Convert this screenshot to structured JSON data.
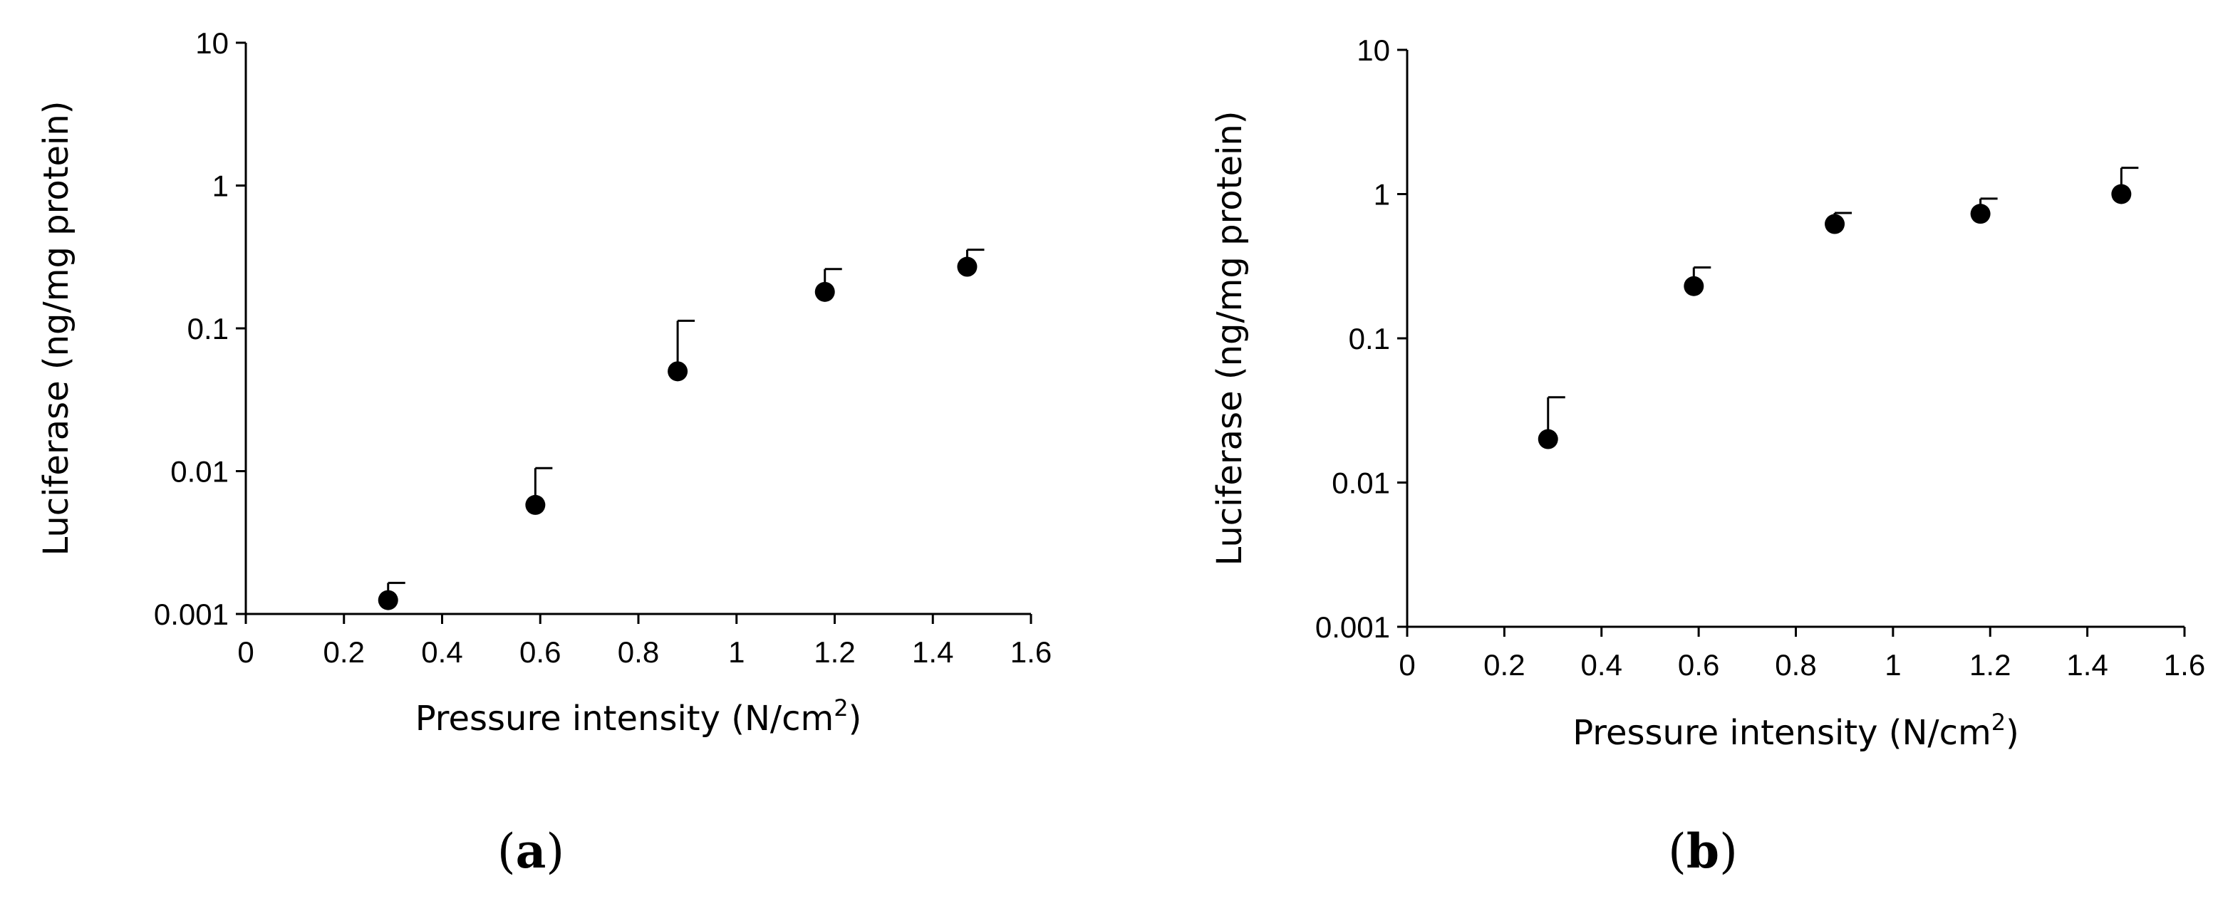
{
  "chart_data": [
    {
      "type": "scatter",
      "panel_label": "a",
      "xlabel_main": "Pressure intensity (N/cm",
      "xlabel_sup": "2",
      "xlabel_end": ")",
      "ylabel": "Luciferase (ng/mg protein)",
      "xlim": [
        0,
        1.6
      ],
      "x_ticks": [
        "0",
        "0.2",
        "0.4",
        "0.6",
        "0.8",
        "1",
        "1.2",
        "1.4",
        "1.6"
      ],
      "y_scale": "log",
      "ylim": [
        0.001,
        10
      ],
      "y_ticks": [
        "0.001",
        "0.01",
        "0.1",
        "1",
        "10"
      ],
      "points": [
        {
          "x": 0.29,
          "y": 0.00125,
          "err_upper": 0.00165
        },
        {
          "x": 0.59,
          "y": 0.0058,
          "err_upper": 0.0105
        },
        {
          "x": 0.88,
          "y": 0.05,
          "err_upper": 0.113
        },
        {
          "x": 1.18,
          "y": 0.18,
          "err_upper": 0.26
        },
        {
          "x": 1.47,
          "y": 0.27,
          "err_upper": 0.355
        }
      ]
    },
    {
      "type": "scatter",
      "panel_label": "b",
      "xlabel_main": "Pressure intensity (N/cm",
      "xlabel_sup": "2",
      "xlabel_end": ")",
      "ylabel": "Luciferase (ng/mg protein)",
      "xlim": [
        0,
        1.6
      ],
      "x_ticks": [
        "0",
        "0.2",
        "0.4",
        "0.6",
        "0.8",
        "1",
        "1.2",
        "1.4",
        "1.6"
      ],
      "y_scale": "log",
      "ylim": [
        0.001,
        10
      ],
      "y_ticks": [
        "0.001",
        "0.01",
        "0.1",
        "1",
        "10"
      ],
      "points": [
        {
          "x": 0.29,
          "y": 0.02,
          "err_upper": 0.039
        },
        {
          "x": 0.59,
          "y": 0.23,
          "err_upper": 0.31
        },
        {
          "x": 0.88,
          "y": 0.62,
          "err_upper": 0.74
        },
        {
          "x": 1.18,
          "y": 0.73,
          "err_upper": 0.93
        },
        {
          "x": 1.47,
          "y": 1.0,
          "err_upper": 1.52
        }
      ]
    }
  ]
}
